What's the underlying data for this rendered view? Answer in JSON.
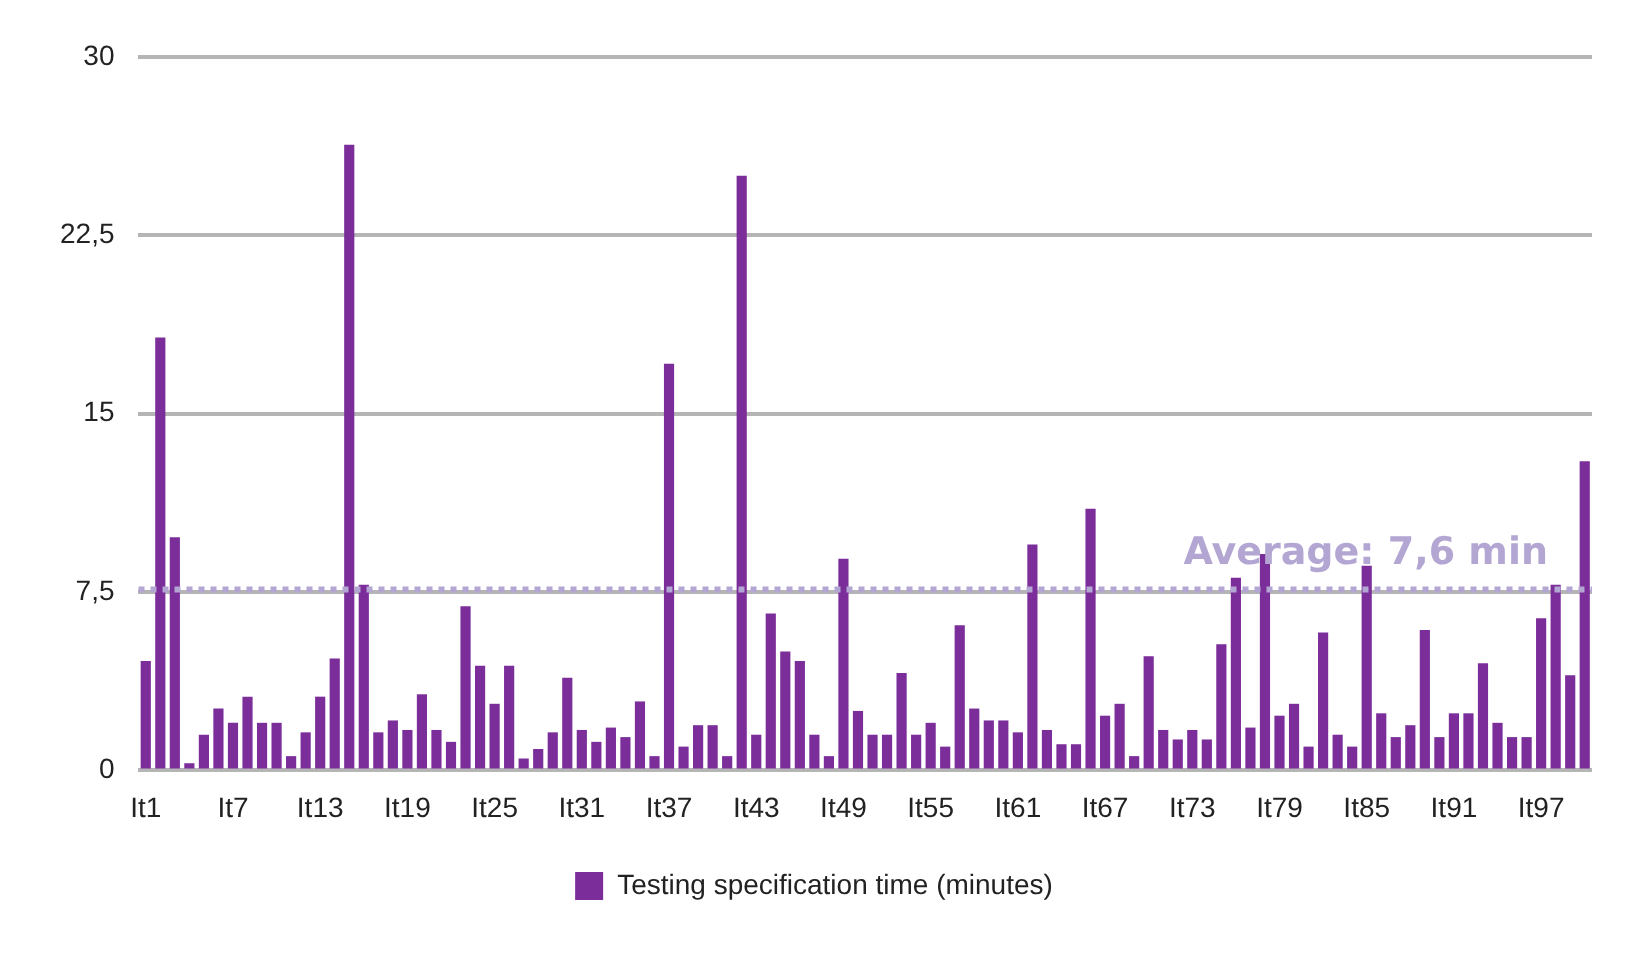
{
  "chart_data": {
    "type": "bar",
    "categories": [
      "It1",
      null,
      null,
      null,
      null,
      null,
      "It7",
      null,
      null,
      null,
      null,
      null,
      "It13",
      null,
      null,
      null,
      null,
      null,
      "It19",
      null,
      null,
      null,
      null,
      null,
      "It25",
      null,
      null,
      null,
      null,
      null,
      "It31",
      null,
      null,
      null,
      null,
      null,
      "It37",
      null,
      null,
      null,
      null,
      null,
      "It43",
      null,
      null,
      null,
      null,
      null,
      "It49",
      null,
      null,
      null,
      null,
      null,
      "It55",
      null,
      null,
      null,
      null,
      null,
      "It61",
      null,
      null,
      null,
      null,
      null,
      "It67",
      null,
      null,
      null,
      null,
      null,
      "It73",
      null,
      null,
      null,
      null,
      null,
      "It79",
      null,
      null,
      null,
      null,
      null,
      "It85",
      null,
      null,
      null,
      null,
      null,
      "It91",
      null,
      null,
      null,
      null,
      null,
      "It97",
      null,
      null,
      null
    ],
    "series": [
      {
        "name": "Testing specification time (minutes)",
        "color": "#7b2d9a",
        "values": [
          4.6,
          18.2,
          9.8,
          0.3,
          1.5,
          2.6,
          2.0,
          3.1,
          2.0,
          2.0,
          0.6,
          1.6,
          3.1,
          4.7,
          26.3,
          7.8,
          1.6,
          2.1,
          1.7,
          3.2,
          1.7,
          1.2,
          6.9,
          4.4,
          2.8,
          4.4,
          0.5,
          0.9,
          1.6,
          3.9,
          1.7,
          1.2,
          1.8,
          1.4,
          2.9,
          0.6,
          17.1,
          1.0,
          1.9,
          1.9,
          0.6,
          25.0,
          1.5,
          6.6,
          5.0,
          4.6,
          1.5,
          0.6,
          8.9,
          2.5,
          1.5,
          1.5,
          4.1,
          1.5,
          2.0,
          1.0,
          6.1,
          2.6,
          2.1,
          2.1,
          1.6,
          9.5,
          1.7,
          1.1,
          1.1,
          11.0,
          2.3,
          2.8,
          0.6,
          4.8,
          1.7,
          1.3,
          1.7,
          1.3,
          5.3,
          8.1,
          1.8,
          9.1,
          2.3,
          2.8,
          1.0,
          5.8,
          1.5,
          1.0,
          8.6,
          2.4,
          1.4,
          1.9,
          5.9,
          1.4,
          2.4,
          2.4,
          4.5,
          2.0,
          1.4,
          1.4,
          6.4,
          7.8,
          4.0,
          13.0
        ]
      }
    ],
    "ylim": [
      0,
      30
    ],
    "yticks": [
      0,
      {
        "value": 7.5,
        "label": "7,5"
      },
      15,
      {
        "value": 22.5,
        "label": "22,5"
      },
      30
    ],
    "grid": "y",
    "legend": "bottom",
    "ref_lines": [
      {
        "axis": "y",
        "value": 7.6,
        "label": "Average: 7,6 min",
        "color": "#b3a6d3",
        "line_style": "dotted"
      }
    ]
  }
}
